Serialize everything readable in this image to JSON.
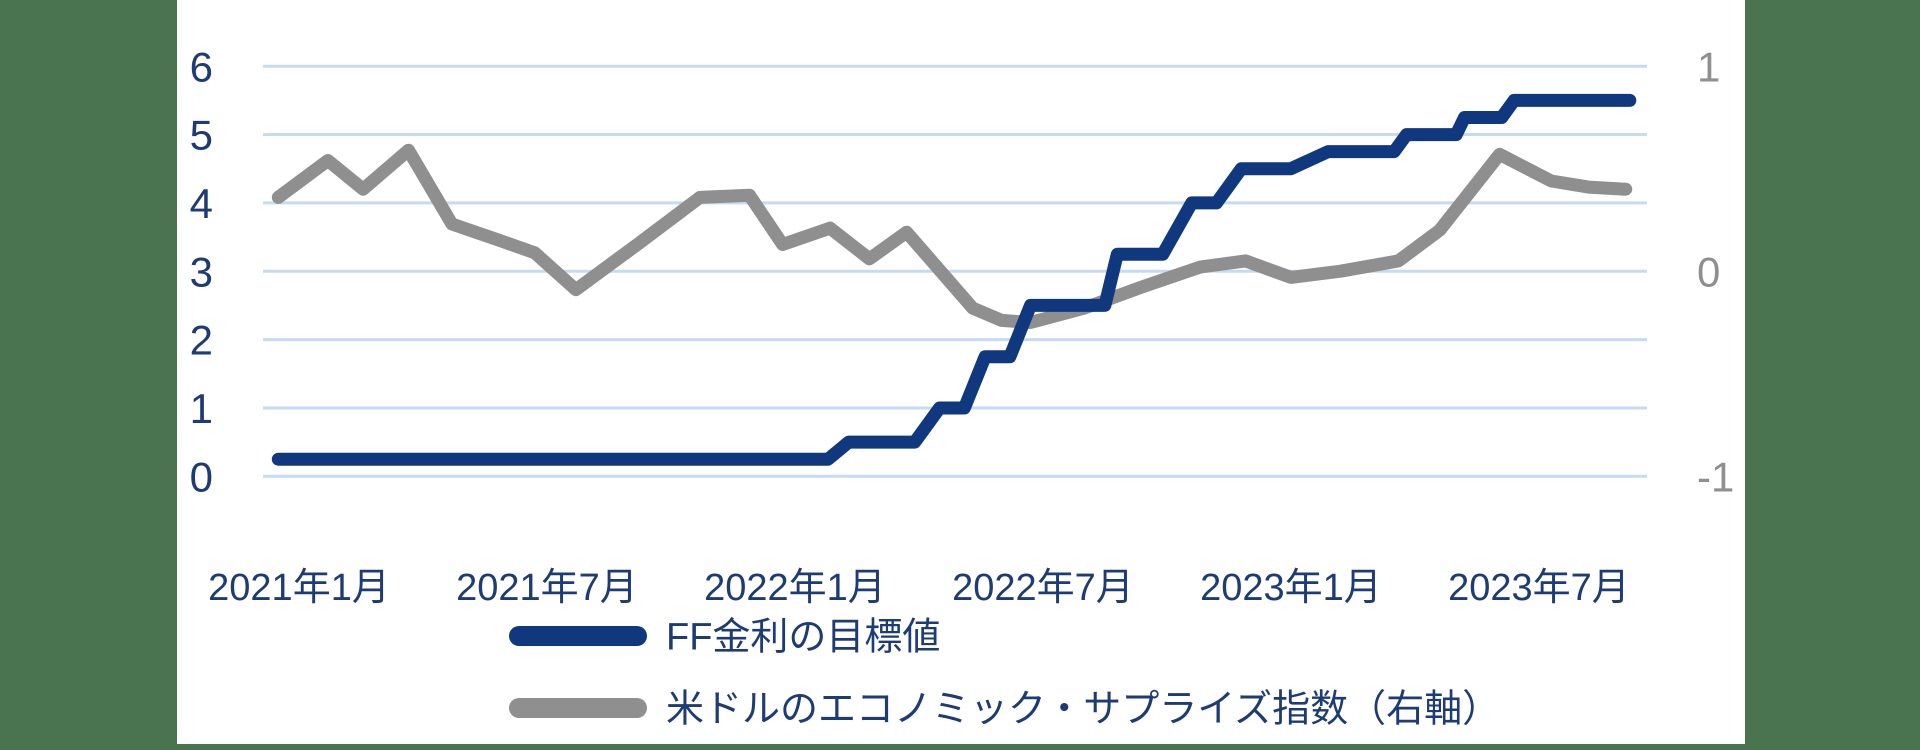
{
  "frame": {
    "green_color": "#4a7350",
    "panel_color": "#ffffff"
  },
  "chart_data": {
    "type": "line",
    "title": "",
    "grid": true,
    "gridline_color": "#c7daf3",
    "text_color": "#1d3b74",
    "legend_position": "bottom",
    "x_axis": {
      "unit": "months_since_2021_01",
      "tick_labels": [
        {
          "label": "2021年1月",
          "m": 0
        },
        {
          "label": "2021年7月",
          "m": 6
        },
        {
          "label": "2022年1月",
          "m": 12
        },
        {
          "label": "2022年7月",
          "m": 18
        },
        {
          "label": "2023年1月",
          "m": 24
        },
        {
          "label": "2023年7月",
          "m": 30
        }
      ]
    },
    "left_y_axis": {
      "ticks": [
        6,
        5,
        4,
        3,
        2,
        1,
        0
      ],
      "range": [
        0,
        6
      ],
      "label_color": "#1d3b74"
    },
    "right_y_axis": {
      "ticks": [
        1,
        0,
        -1
      ],
      "range": [
        -1,
        1
      ],
      "label_color": "#8f8f8f"
    },
    "series": [
      {
        "name": "FF金利の目標値",
        "axis": "left",
        "color": "#10387e",
        "points": [
          [
            -0.5,
            0.25
          ],
          [
            12.8,
            0.25
          ],
          [
            13.3,
            0.5
          ],
          [
            14.9,
            0.5
          ],
          [
            15.5,
            1.0
          ],
          [
            16.1,
            1.0
          ],
          [
            16.6,
            1.75
          ],
          [
            17.2,
            1.75
          ],
          [
            17.7,
            2.5
          ],
          [
            19.5,
            2.5
          ],
          [
            19.8,
            3.25
          ],
          [
            20.9,
            3.25
          ],
          [
            21.6,
            4.0
          ],
          [
            22.2,
            4.0
          ],
          [
            22.8,
            4.5
          ],
          [
            24.0,
            4.5
          ],
          [
            24.9,
            4.75
          ],
          [
            26.5,
            4.75
          ],
          [
            26.8,
            5.0
          ],
          [
            28.0,
            5.0
          ],
          [
            28.2,
            5.25
          ],
          [
            29.1,
            5.25
          ],
          [
            29.4,
            5.5
          ],
          [
            32.2,
            5.5
          ]
        ]
      },
      {
        "name": "米ドルのエコノミック・サプライズ指数（右軸）",
        "axis": "right",
        "color": "#8f8f8f",
        "points": [
          [
            -0.5,
            0.36
          ],
          [
            0.7,
            0.54
          ],
          [
            1.55,
            0.4
          ],
          [
            2.65,
            0.59
          ],
          [
            3.7,
            0.23
          ],
          [
            4.85,
            0.15
          ],
          [
            5.7,
            0.09
          ],
          [
            6.7,
            -0.09
          ],
          [
            8.25,
            0.14
          ],
          [
            9.7,
            0.36
          ],
          [
            10.9,
            0.37
          ],
          [
            11.7,
            0.13
          ],
          [
            12.85,
            0.21
          ],
          [
            13.8,
            0.06
          ],
          [
            14.7,
            0.19
          ],
          [
            16.3,
            -0.18
          ],
          [
            17.0,
            -0.24
          ],
          [
            17.7,
            -0.25
          ],
          [
            19.0,
            -0.18
          ],
          [
            20.35,
            -0.08
          ],
          [
            21.8,
            0.02
          ],
          [
            22.9,
            0.05
          ],
          [
            24.0,
            -0.03
          ],
          [
            25.2,
            0.0
          ],
          [
            26.6,
            0.05
          ],
          [
            27.6,
            0.2
          ],
          [
            29.05,
            0.57
          ],
          [
            30.3,
            0.44
          ],
          [
            31.2,
            0.41
          ],
          [
            32.1,
            0.4
          ]
        ]
      }
    ]
  }
}
